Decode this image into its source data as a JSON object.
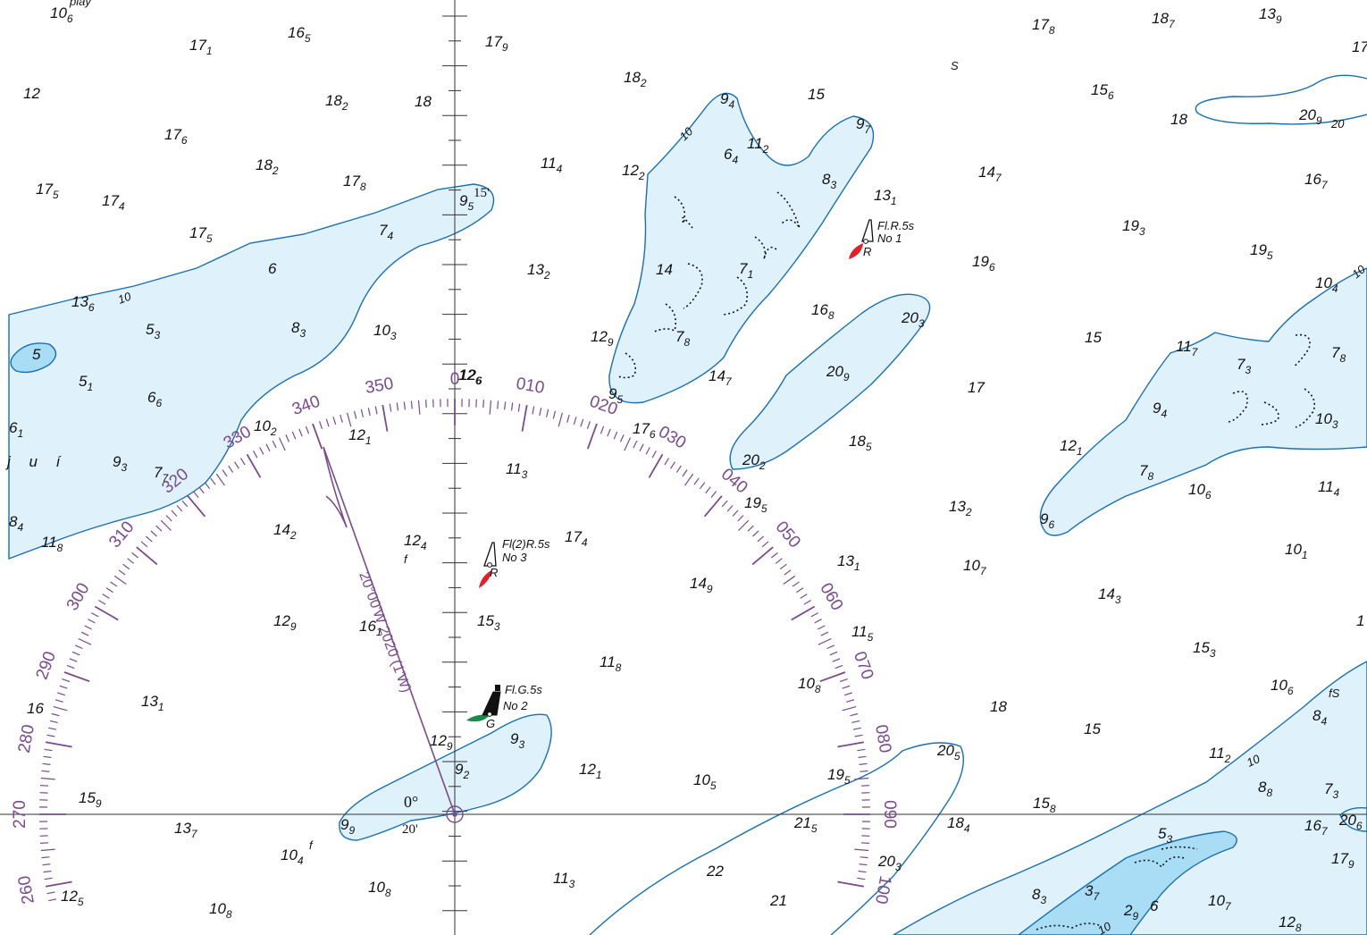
{
  "colors": {
    "water": "#ffffff",
    "shoal": "#dff1fb",
    "shoal_deep": "#a9dcf5",
    "contour": "#1b6fb0",
    "rose": "#7a4a8c",
    "buoy_red": "#e0202a",
    "buoy_green": "#1a8a4a"
  },
  "header_fragment": "play",
  "place_name": "j u í",
  "coast_label": "S",
  "rose": {
    "labels": [
      "0",
      "010",
      "020",
      "030",
      "040",
      "050",
      "060",
      "070",
      "080",
      "090",
      "100",
      "260",
      "270",
      "280",
      "290",
      "300",
      "310",
      "320",
      "330",
      "340",
      "350"
    ],
    "variation_text": "20°00'W 2020 (1'W)",
    "meridian_label": "0°",
    "lat_minutes": "15'",
    "lat_minutes_lower": "20'"
  },
  "buoys": [
    {
      "name": "buoy-no-1",
      "light": "Fl.R.5s",
      "number": "No 1",
      "color_letter": "R",
      "type": "red"
    },
    {
      "name": "buoy-no-3",
      "light": "Fl(2)R.5s",
      "number": "No 3",
      "color_letter": "R",
      "type": "red"
    },
    {
      "name": "buoy-no-2",
      "light": "Fl.G.5s",
      "number": "No 2",
      "color_letter": "G",
      "type": "green"
    }
  ],
  "contour_labels": [
    "10",
    "10",
    "10",
    "20",
    "10",
    "10"
  ],
  "bottom_marks": [
    "f",
    "f",
    "fS"
  ],
  "soundings": [
    {
      "m": "10",
      "d": "6"
    },
    {
      "m": "17",
      "d": "1"
    },
    {
      "m": "16",
      "d": "5"
    },
    {
      "m": "17",
      "d": "9"
    },
    {
      "m": "12",
      "d": ""
    },
    {
      "m": "18",
      "d": "2"
    },
    {
      "m": "18",
      "d": ""
    },
    {
      "m": "17",
      "d": "6"
    },
    {
      "m": "18",
      "d": "2"
    },
    {
      "m": "17",
      "d": "8"
    },
    {
      "m": "17",
      "d": "5"
    },
    {
      "m": "17",
      "d": "4"
    },
    {
      "m": "17",
      "d": "5"
    },
    {
      "m": "9",
      "d": "5"
    },
    {
      "m": "7",
      "d": "4"
    },
    {
      "m": "6",
      "d": ""
    },
    {
      "m": "13",
      "d": "6"
    },
    {
      "m": "5",
      "d": "3"
    },
    {
      "m": "8",
      "d": "3"
    },
    {
      "m": "10",
      "d": "3"
    },
    {
      "m": "5",
      "d": ""
    },
    {
      "m": "5",
      "d": "1"
    },
    {
      "m": "6",
      "d": "6"
    },
    {
      "m": "6",
      "d": "1"
    },
    {
      "m": "10",
      "d": "2"
    },
    {
      "m": "12",
      "d": "1"
    },
    {
      "m": "9",
      "d": "3"
    },
    {
      "m": "7",
      "d": "7"
    },
    {
      "m": "8",
      "d": "4"
    },
    {
      "m": "11",
      "d": "8"
    },
    {
      "m": "14",
      "d": "2"
    },
    {
      "m": "12",
      "d": "4"
    },
    {
      "m": "12",
      "d": "6"
    },
    {
      "m": "12",
      "d": "9"
    },
    {
      "m": "16",
      "d": "1"
    },
    {
      "m": "16",
      "d": ""
    },
    {
      "m": "13",
      "d": "1"
    },
    {
      "m": "15",
      "d": "9"
    },
    {
      "m": "13",
      "d": "7"
    },
    {
      "m": "10",
      "d": "4"
    },
    {
      "m": "12",
      "d": "5"
    },
    {
      "m": "10",
      "d": "8"
    },
    {
      "m": "10",
      "d": "8"
    },
    {
      "m": "18",
      "d": "2"
    },
    {
      "m": "11",
      "d": "4"
    },
    {
      "m": "12",
      "d": "2"
    },
    {
      "m": "13",
      "d": "2"
    },
    {
      "m": "12",
      "d": "6"
    },
    {
      "m": "11",
      "d": "3"
    },
    {
      "m": "17",
      "d": "4"
    },
    {
      "m": "15",
      "d": "3"
    },
    {
      "m": "11",
      "d": "8"
    },
    {
      "m": "12",
      "d": "9"
    },
    {
      "m": "9",
      "d": "2"
    },
    {
      "m": "9",
      "d": "3"
    },
    {
      "m": "12",
      "d": "1"
    },
    {
      "m": "9",
      "d": "9"
    },
    {
      "m": "11",
      "d": "3"
    },
    {
      "m": "9",
      "d": "4"
    },
    {
      "m": "15",
      "d": ""
    },
    {
      "m": "9",
      "d": "7"
    },
    {
      "m": "11",
      "d": "2"
    },
    {
      "m": "6",
      "d": "4"
    },
    {
      "m": "8",
      "d": "3"
    },
    {
      "m": "13",
      "d": "1"
    },
    {
      "m": "14",
      "d": ""
    },
    {
      "m": "7",
      "d": "1"
    },
    {
      "m": "7",
      "d": "8"
    },
    {
      "m": "12",
      "d": "9"
    },
    {
      "m": "9",
      "d": "5"
    },
    {
      "m": "14",
      "d": "7"
    },
    {
      "m": "16",
      "d": "8"
    },
    {
      "m": "20",
      "d": "3"
    },
    {
      "m": "20",
      "d": "9"
    },
    {
      "m": "17",
      "d": "6"
    },
    {
      "m": "20",
      "d": "2"
    },
    {
      "m": "19",
      "d": "5"
    },
    {
      "m": "18",
      "d": "5"
    },
    {
      "m": "13",
      "d": "1"
    },
    {
      "m": "14",
      "d": "9"
    },
    {
      "m": "11",
      "d": "5"
    },
    {
      "m": "10",
      "d": "8"
    },
    {
      "m": "10",
      "d": "5"
    },
    {
      "m": "19",
      "d": "5"
    },
    {
      "m": "20",
      "d": "5"
    },
    {
      "m": "21",
      "d": "5"
    },
    {
      "m": "22",
      "d": ""
    },
    {
      "m": "21",
      "d": ""
    },
    {
      "m": "20",
      "d": "3"
    },
    {
      "m": "18",
      "d": "4"
    },
    {
      "m": "17",
      "d": "8"
    },
    {
      "m": "18",
      "d": "7"
    },
    {
      "m": "13",
      "d": "9"
    },
    {
      "m": "15",
      "d": "6"
    },
    {
      "m": "18",
      "d": ""
    },
    {
      "m": "20",
      "d": "9"
    },
    {
      "m": "14",
      "d": "7"
    },
    {
      "m": "16",
      "d": "7"
    },
    {
      "m": "19",
      "d": "3"
    },
    {
      "m": "19",
      "d": "6"
    },
    {
      "m": "19",
      "d": "5"
    },
    {
      "m": "15",
      "d": ""
    },
    {
      "m": "17",
      "d": ""
    },
    {
      "m": "12",
      "d": "1"
    },
    {
      "m": "13",
      "d": "2"
    },
    {
      "m": "10",
      "d": "7"
    },
    {
      "m": "9",
      "d": "6"
    },
    {
      "m": "7",
      "d": "8"
    },
    {
      "m": "10",
      "d": "6"
    },
    {
      "m": "9",
      "d": "4"
    },
    {
      "m": "11",
      "d": "7"
    },
    {
      "m": "7",
      "d": "3"
    },
    {
      "m": "7",
      "d": "8"
    },
    {
      "m": "10",
      "d": "4"
    },
    {
      "m": "10",
      "d": "3"
    },
    {
      "m": "11",
      "d": "4"
    },
    {
      "m": "10",
      "d": "1"
    },
    {
      "m": "14",
      "d": "3"
    },
    {
      "m": "15",
      "d": "3"
    },
    {
      "m": "10",
      "d": "6"
    },
    {
      "m": "8",
      "d": "4"
    },
    {
      "m": "18",
      "d": ""
    },
    {
      "m": "15",
      "d": ""
    },
    {
      "m": "11",
      "d": "2"
    },
    {
      "m": "8",
      "d": "8"
    },
    {
      "m": "7",
      "d": "3"
    },
    {
      "m": "15",
      "d": "8"
    },
    {
      "m": "16",
      "d": "7"
    },
    {
      "m": "20",
      "d": "6"
    },
    {
      "m": "17",
      "d": "9"
    },
    {
      "m": "5",
      "d": "3"
    },
    {
      "m": "8",
      "d": "3"
    },
    {
      "m": "3",
      "d": "7"
    },
    {
      "m": "2",
      "d": "9"
    },
    {
      "m": "6",
      "d": ""
    },
    {
      "m": "10",
      "d": "7"
    },
    {
      "m": "12",
      "d": "8"
    },
    {
      "m": "17",
      "d": ""
    },
    {
      "m": "1",
      "d": ""
    }
  ]
}
